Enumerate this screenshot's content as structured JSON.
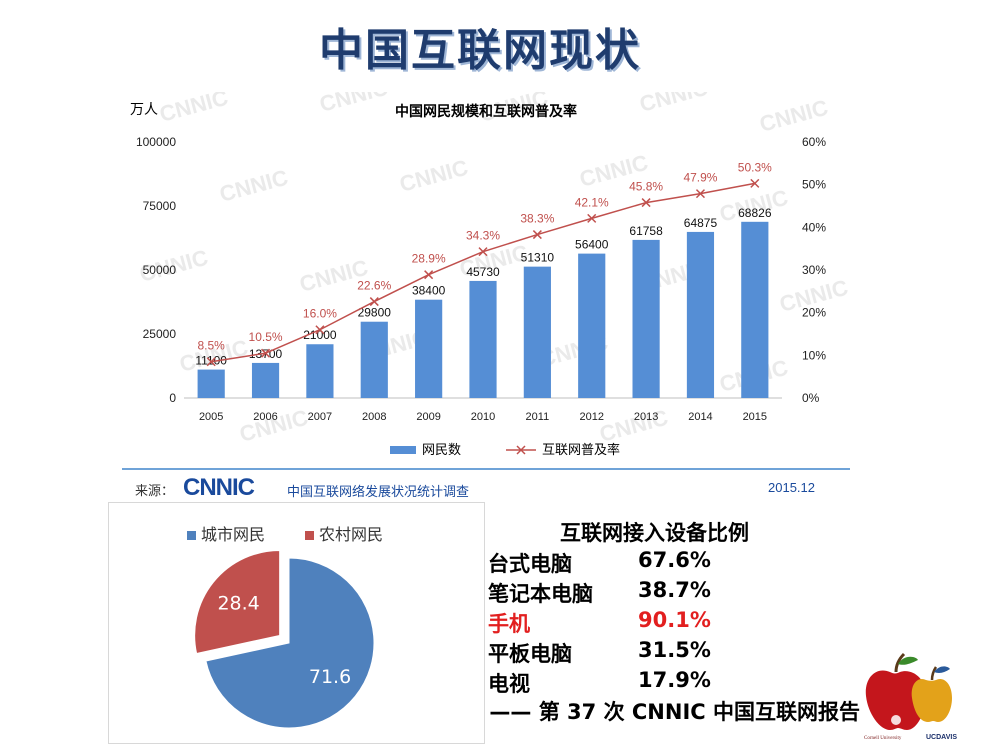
{
  "slide": {
    "title": "中国互联网现状"
  },
  "chart_data": [
    {
      "type": "bar",
      "title": "中国网民规模和互联网普及率",
      "y_unit": "万人",
      "categories": [
        "2005",
        "2006",
        "2007",
        "2008",
        "2009",
        "2010",
        "2011",
        "2012",
        "2013",
        "2014",
        "2015"
      ],
      "series": [
        {
          "name": "网民数",
          "type": "bar",
          "values": [
            11100,
            13700,
            21000,
            29800,
            38400,
            45730,
            51310,
            56400,
            61758,
            64875,
            68826
          ],
          "color": "#558ed5"
        },
        {
          "name": "互联网普及率",
          "type": "line",
          "values": [
            8.5,
            10.5,
            16.0,
            22.6,
            28.9,
            34.3,
            38.3,
            42.1,
            45.8,
            47.9,
            50.3
          ],
          "color": "#c0504d"
        }
      ],
      "y_ticks_left": [
        "0",
        "25000",
        "50000",
        "75000",
        "100000"
      ],
      "y_ticks_right": [
        "0%",
        "10%",
        "20%",
        "30%",
        "40%",
        "50%",
        "60%"
      ],
      "ylim_left": [
        0,
        100000
      ],
      "ylim_right": [
        0,
        60
      ],
      "legend_position": "bottom",
      "watermark": "CNNIC",
      "source_label": "来源：",
      "source_logo": "CNNIC",
      "source_text": "中国互联网络发展状况统计调查",
      "source_date": "2015.12"
    },
    {
      "type": "pie",
      "categories": [
        "城市网民",
        "农村网民"
      ],
      "values": [
        71.6,
        28.4
      ],
      "colors": [
        "#4f81bd",
        "#c0504d"
      ],
      "legend_position": "top"
    }
  ],
  "devices": {
    "title": "互联网接入设备比例",
    "items": [
      {
        "name": "台式电脑",
        "value": "67.6%"
      },
      {
        "name": "笔记本电脑",
        "value": "38.7%"
      },
      {
        "name": "手机",
        "value": "90.1%"
      },
      {
        "name": "平板电脑",
        "value": "31.5%"
      },
      {
        "name": "电视",
        "value": "17.9%"
      }
    ],
    "highlight_index": 2,
    "highlight_color": "#e21f1f",
    "source_note": "—— 第 37 次 CNNIC 中国互联网报告"
  }
}
